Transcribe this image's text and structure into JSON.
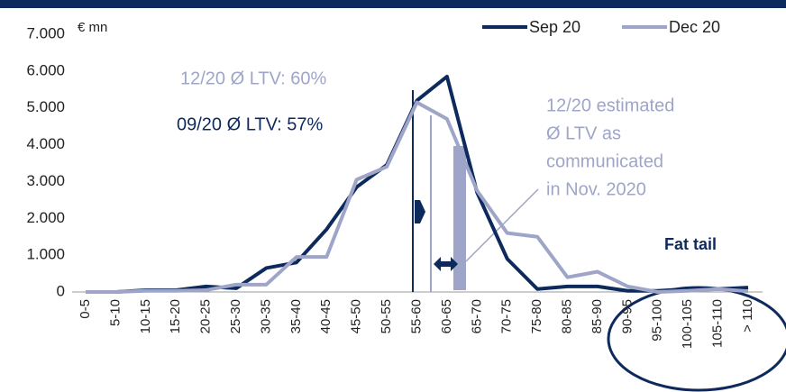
{
  "chart_data": {
    "type": "line",
    "unit_label": "€ mn",
    "categories": [
      "0-5",
      "5-10",
      "10-15",
      "15-20",
      "20-25",
      "25-30",
      "30-35",
      "35-40",
      "40-45",
      "45-50",
      "50-55",
      "55-60",
      "60-65",
      "65-70",
      "70-75",
      "75-80",
      "80-85",
      "85-90",
      "90-95",
      "95-100",
      "100-105",
      "105-110",
      "> 110"
    ],
    "series": [
      {
        "name": "Sep 20",
        "color": "#0d2a5c",
        "values": [
          0,
          0,
          50,
          50,
          150,
          100,
          650,
          800,
          1700,
          2850,
          3450,
          5200,
          5850,
          2700,
          900,
          80,
          150,
          150,
          30,
          30,
          80,
          80,
          120
        ]
      },
      {
        "name": "Dec 20",
        "color": "#9fa5c8",
        "values": [
          0,
          0,
          30,
          30,
          50,
          200,
          200,
          950,
          950,
          3050,
          3400,
          5150,
          4700,
          2750,
          1600,
          1500,
          400,
          550,
          150,
          0,
          30,
          80,
          20
        ]
      }
    ],
    "ylim": [
      0,
      7000
    ],
    "yticks": [
      {
        "value": 0,
        "label": "0"
      },
      {
        "value": 1000,
        "label": "1.000"
      },
      {
        "value": 2000,
        "label": "2.000"
      },
      {
        "value": 3000,
        "label": "3.000"
      },
      {
        "value": 4000,
        "label": "4.000"
      },
      {
        "value": 5000,
        "label": "5.000"
      },
      {
        "value": 6000,
        "label": "6.000"
      },
      {
        "value": 7000,
        "label": "7.000"
      }
    ],
    "legend": "top-right",
    "annotations": {
      "dec_ltv": "12/20 Ø LTV: 60%",
      "sep_ltv": "09/20 Ø LTV: 57%",
      "estimate_note": [
        "12/20 estimated",
        "Ø LTV as",
        "communicated",
        "in Nov. 2020"
      ],
      "fat_tail": "Fat tail"
    }
  }
}
